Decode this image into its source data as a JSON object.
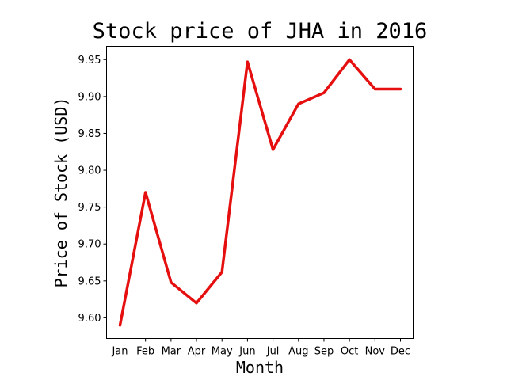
{
  "chart_data": {
    "type": "line",
    "title": "Stock price of JHA in 2016",
    "xlabel": "Month",
    "ylabel": "Price of Stock (USD)",
    "categories": [
      "Jan",
      "Feb",
      "Mar",
      "Apr",
      "May",
      "Jun",
      "Jul",
      "Aug",
      "Sep",
      "Oct",
      "Nov",
      "Dec"
    ],
    "series": [
      {
        "color": "#e60f0f",
        "values": [
          9.59,
          9.77,
          9.648,
          9.62,
          9.662,
          9.947,
          9.828,
          9.89,
          9.905,
          9.95,
          9.91,
          9.91
        ]
      }
    ],
    "yticks": [
      "9.60",
      "9.65",
      "9.70",
      "9.75",
      "9.80",
      "9.85",
      "9.90",
      "9.95"
    ],
    "ylim": [
      9.572,
      9.968
    ],
    "grid": false,
    "legend": "none"
  }
}
